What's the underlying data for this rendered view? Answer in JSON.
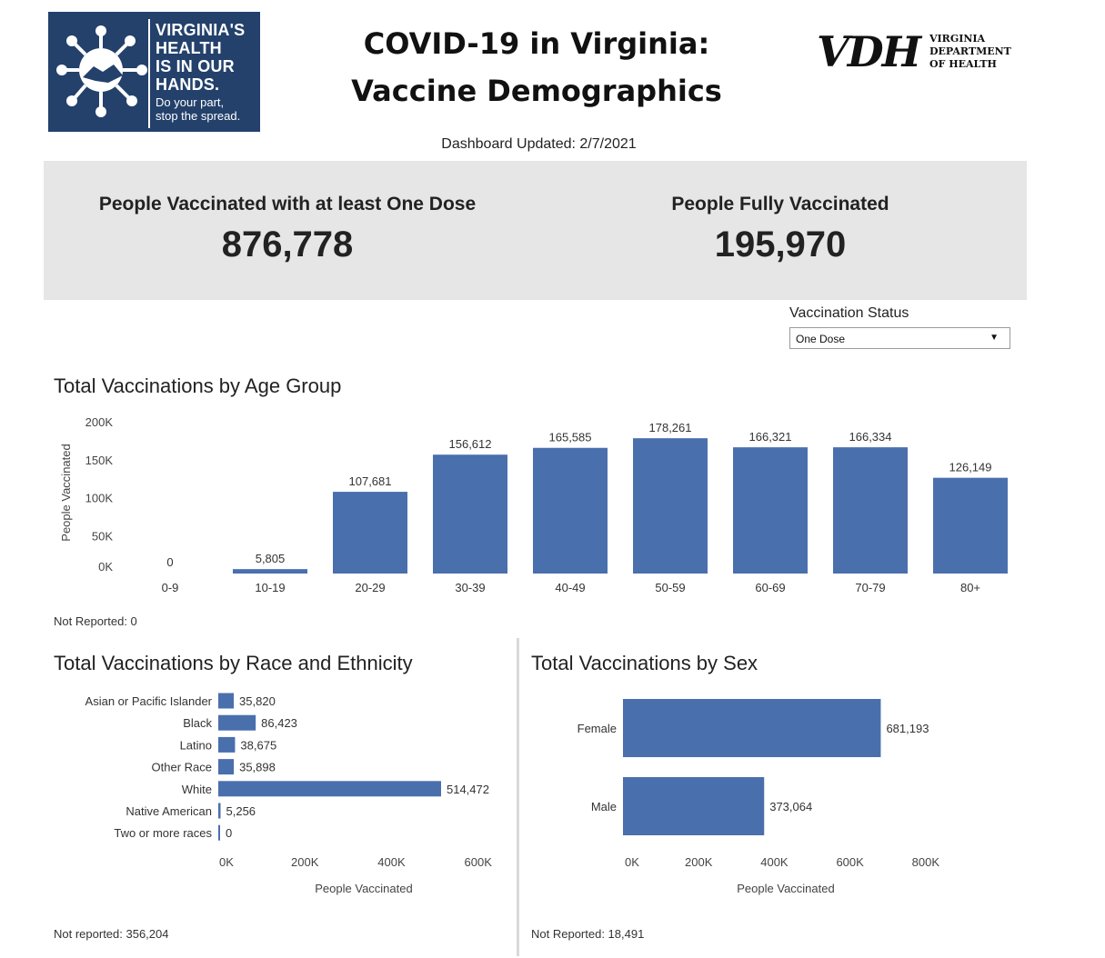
{
  "header": {
    "logo_lines": [
      "VIRGINIA'S",
      "HEALTH",
      "IS IN OUR",
      "HANDS."
    ],
    "logo_tagline": [
      "Do your part,",
      "stop the spread."
    ],
    "title_line1": "COVID-19 in Virginia:",
    "title_line2": "Vaccine Demographics",
    "vdh_mark": "VDH",
    "vdh_words": [
      "VIRGINIA",
      "DEPARTMENT",
      "OF HEALTH"
    ],
    "updated": "Dashboard Updated: 2/7/2021"
  },
  "kpis": {
    "one_dose_label": "People Vaccinated with at least One Dose",
    "one_dose_value": "876,778",
    "full_label": "People Fully Vaccinated",
    "full_value": "195,970"
  },
  "filter": {
    "label": "Vaccination Status",
    "selected": "One Dose",
    "icon": "caret-down-icon"
  },
  "colors": {
    "bar": "#4a6fad",
    "kpi_bg": "#e6e6e6",
    "logo_bg": "#23416b"
  },
  "age_section": {
    "title": "Total Vaccinations by Age Group",
    "note": "Not Reported: 0"
  },
  "race_section": {
    "title": "Total Vaccinations by Race and Ethnicity",
    "note": "Not reported: 356,204"
  },
  "sex_section": {
    "title": "Total Vaccinations by Sex",
    "note": "Not Reported: 18,491"
  },
  "chart_data": [
    {
      "type": "bar",
      "categories": [
        "0-9",
        "10-19",
        "20-29",
        "30-39",
        "40-49",
        "50-59",
        "60-69",
        "70-79",
        "80+"
      ],
      "values": [
        0,
        5805,
        107681,
        156612,
        165585,
        178261,
        166321,
        166334,
        126149
      ],
      "labels": [
        "0",
        "5,805",
        "107,681",
        "156,612",
        "165,585",
        "178,261",
        "166,321",
        "166,334",
        "126,149"
      ],
      "ylabel": "People Vaccinated",
      "ylim": [
        0,
        200000
      ],
      "yticks": [
        "0K",
        "50K",
        "100K",
        "150K",
        "200K"
      ],
      "grid": false
    },
    {
      "type": "bar",
      "orientation": "horizontal",
      "categories": [
        "Asian or Pacific Islander",
        "Black",
        "Latino",
        "Other Race",
        "White",
        "Native American",
        "Two or more races"
      ],
      "values": [
        35820,
        86423,
        38675,
        35898,
        514472,
        5256,
        0
      ],
      "labels": [
        "35,820",
        "86,423",
        "38,675",
        "35,898",
        "514,472",
        "5,256",
        "0"
      ],
      "xlabel": "People Vaccinated",
      "xlim": [
        0,
        630000
      ],
      "xticks": [
        0,
        200000,
        400000,
        600000
      ],
      "xtick_labels": [
        "0K",
        "200K",
        "400K",
        "600K"
      ],
      "grid": false
    },
    {
      "type": "bar",
      "orientation": "horizontal",
      "categories": [
        "Female",
        "Male"
      ],
      "values": [
        681193,
        373064
      ],
      "labels": [
        "681,193",
        "373,064"
      ],
      "xlabel": "People Vaccinated",
      "xlim": [
        0,
        870000
      ],
      "xticks": [
        0,
        200000,
        400000,
        600000,
        800000
      ],
      "xtick_labels": [
        "0K",
        "200K",
        "400K",
        "600K",
        "800K"
      ],
      "grid": false
    }
  ]
}
